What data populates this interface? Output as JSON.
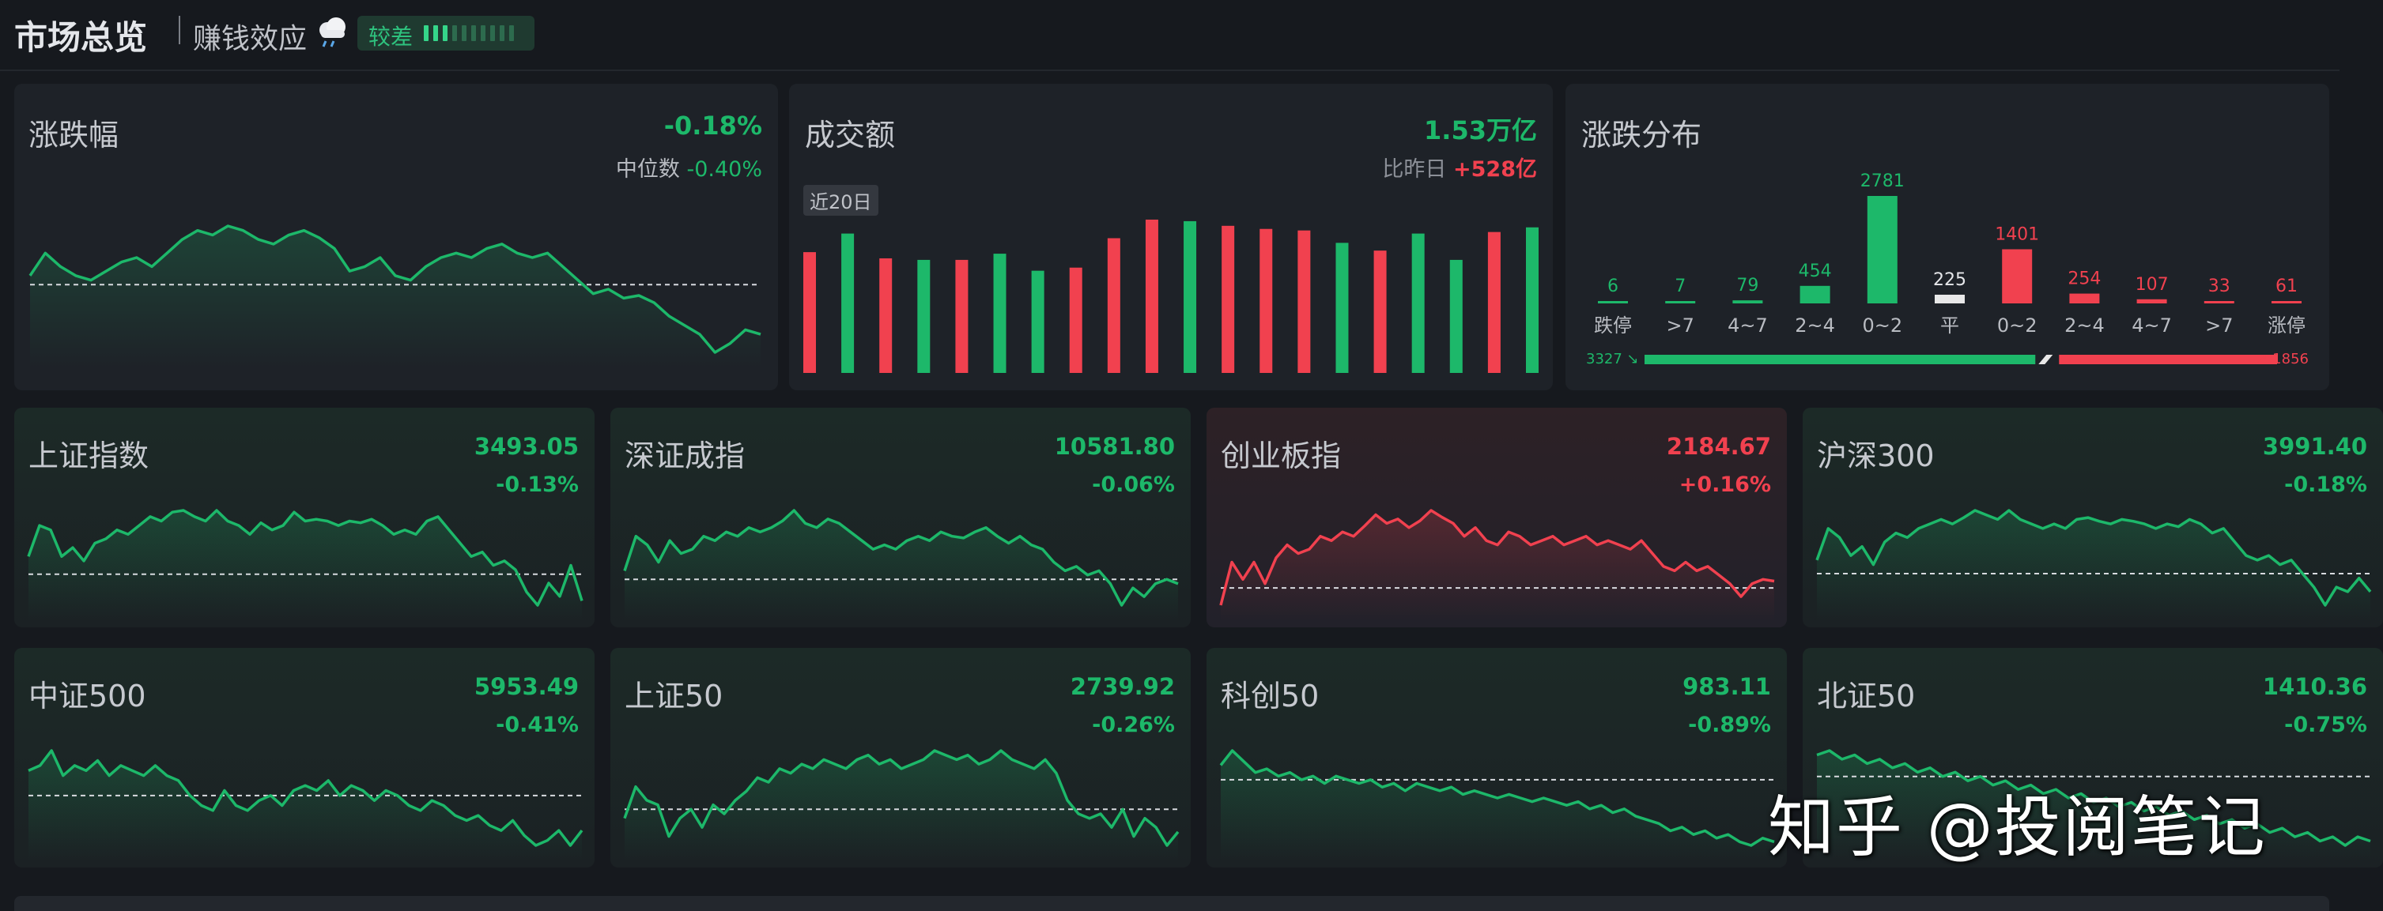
{
  "header": {
    "title": "市场总览",
    "subtitle": "赚钱效应",
    "weather_icon": "cloud-icon",
    "badge_label": "较差",
    "badge_level": 3,
    "badge_total": 10
  },
  "change_panel": {
    "title": "涨跌幅",
    "value": "-0.18%",
    "median_label": "中位数",
    "median_value": "-0.40%",
    "series": [
      0.1,
      0.35,
      0.2,
      0.1,
      0.05,
      0.15,
      0.25,
      0.3,
      0.2,
      0.35,
      0.5,
      0.6,
      0.55,
      0.65,
      0.6,
      0.5,
      0.45,
      0.55,
      0.6,
      0.52,
      0.4,
      0.15,
      0.2,
      0.3,
      0.1,
      0.05,
      0.2,
      0.3,
      0.35,
      0.3,
      0.4,
      0.45,
      0.35,
      0.3,
      0.35,
      0.2,
      0.05,
      -0.1,
      -0.05,
      -0.15,
      -0.12,
      -0.2,
      -0.35,
      -0.45,
      -0.55,
      -0.75,
      -0.65,
      -0.5,
      -0.55
    ]
  },
  "volume_panel": {
    "title": "成交额",
    "value": "1.53万亿",
    "compare_label": "比昨日",
    "compare_value": "+528亿",
    "range_tag": "近20日",
    "bars": [
      {
        "v": 0.78,
        "c": "red"
      },
      {
        "v": 0.9,
        "c": "green"
      },
      {
        "v": 0.74,
        "c": "red"
      },
      {
        "v": 0.73,
        "c": "green"
      },
      {
        "v": 0.73,
        "c": "red"
      },
      {
        "v": 0.77,
        "c": "green"
      },
      {
        "v": 0.66,
        "c": "green"
      },
      {
        "v": 0.68,
        "c": "red"
      },
      {
        "v": 0.87,
        "c": "red"
      },
      {
        "v": 0.99,
        "c": "red"
      },
      {
        "v": 0.98,
        "c": "green"
      },
      {
        "v": 0.95,
        "c": "red"
      },
      {
        "v": 0.93,
        "c": "red"
      },
      {
        "v": 0.92,
        "c": "red"
      },
      {
        "v": 0.84,
        "c": "green"
      },
      {
        "v": 0.79,
        "c": "red"
      },
      {
        "v": 0.9,
        "c": "green"
      },
      {
        "v": 0.73,
        "c": "green"
      },
      {
        "v": 0.91,
        "c": "red"
      },
      {
        "v": 0.94,
        "c": "green"
      }
    ]
  },
  "dist_panel": {
    "title": "涨跌分布",
    "buckets": [
      {
        "label": "跌停",
        "count": "6",
        "v": 6,
        "c": "green"
      },
      {
        "label": ">7",
        "count": "7",
        "v": 7,
        "c": "green"
      },
      {
        "label": "4~7",
        "count": "79",
        "v": 79,
        "c": "green"
      },
      {
        "label": "2~4",
        "count": "454",
        "v": 454,
        "c": "green"
      },
      {
        "label": "0~2",
        "count": "2781",
        "v": 2781,
        "c": "green"
      },
      {
        "label": "平",
        "count": "225",
        "v": 225,
        "c": "flat"
      },
      {
        "label": "0~2",
        "count": "1401",
        "v": 1401,
        "c": "red"
      },
      {
        "label": "2~4",
        "count": "254",
        "v": 254,
        "c": "red"
      },
      {
        "label": "4~7",
        "count": "107",
        "v": 107,
        "c": "red"
      },
      {
        "label": ">7",
        "count": "33",
        "v": 33,
        "c": "red"
      },
      {
        "label": "涨停",
        "count": "61",
        "v": 61,
        "c": "red"
      }
    ],
    "down_total": "3327",
    "up_total": "1856",
    "down_value": 3327,
    "up_value": 1856
  },
  "indices": [
    {
      "name": "上证指数",
      "value": "3493.05",
      "change": "-0.13%",
      "dir": "down",
      "series": [
        0.2,
        0.55,
        0.5,
        0.2,
        0.3,
        0.15,
        0.35,
        0.4,
        0.5,
        0.45,
        0.55,
        0.65,
        0.6,
        0.7,
        0.72,
        0.65,
        0.6,
        0.72,
        0.6,
        0.55,
        0.45,
        0.58,
        0.5,
        0.55,
        0.7,
        0.6,
        0.62,
        0.6,
        0.55,
        0.6,
        0.58,
        0.62,
        0.55,
        0.45,
        0.5,
        0.45,
        0.6,
        0.65,
        0.5,
        0.35,
        0.2,
        0.25,
        0.1,
        0.15,
        0.05,
        -0.2,
        -0.35,
        -0.1,
        -0.25,
        0.1,
        -0.3
      ]
    },
    {
      "name": "深证成指",
      "value": "10581.80",
      "change": "-0.06%",
      "dir": "down",
      "series": [
        0.1,
        0.5,
        0.4,
        0.2,
        0.45,
        0.3,
        0.35,
        0.5,
        0.45,
        0.55,
        0.5,
        0.6,
        0.55,
        0.6,
        0.68,
        0.8,
        0.65,
        0.6,
        0.7,
        0.65,
        0.55,
        0.45,
        0.35,
        0.4,
        0.35,
        0.45,
        0.5,
        0.45,
        0.55,
        0.5,
        0.48,
        0.55,
        0.6,
        0.5,
        0.42,
        0.5,
        0.4,
        0.35,
        0.2,
        0.1,
        0.15,
        0.05,
        0.1,
        -0.05,
        -0.3,
        -0.1,
        -0.2,
        -0.05,
        0.0,
        -0.05
      ]
    },
    {
      "name": "创业板指",
      "value": "2184.67",
      "change": "+0.16%",
      "dir": "up",
      "series": [
        -0.2,
        0.3,
        0.1,
        0.3,
        0.05,
        0.35,
        0.5,
        0.4,
        0.45,
        0.6,
        0.55,
        0.65,
        0.6,
        0.72,
        0.85,
        0.75,
        0.8,
        0.7,
        0.78,
        0.9,
        0.82,
        0.75,
        0.6,
        0.7,
        0.55,
        0.5,
        0.65,
        0.6,
        0.5,
        0.55,
        0.6,
        0.5,
        0.55,
        0.6,
        0.5,
        0.55,
        0.5,
        0.45,
        0.55,
        0.4,
        0.25,
        0.2,
        0.3,
        0.2,
        0.25,
        0.15,
        0.05,
        -0.1,
        0.05,
        0.1,
        0.08
      ]
    },
    {
      "name": "沪深300",
      "value": "3991.40",
      "change": "-0.18%",
      "dir": "down",
      "series": [
        0.15,
        0.5,
        0.4,
        0.2,
        0.3,
        0.1,
        0.35,
        0.45,
        0.4,
        0.5,
        0.55,
        0.6,
        0.55,
        0.62,
        0.7,
        0.65,
        0.6,
        0.7,
        0.6,
        0.55,
        0.5,
        0.55,
        0.5,
        0.6,
        0.62,
        0.58,
        0.55,
        0.6,
        0.58,
        0.55,
        0.5,
        0.55,
        0.52,
        0.6,
        0.55,
        0.45,
        0.5,
        0.35,
        0.2,
        0.15,
        0.2,
        0.1,
        0.15,
        0.0,
        -0.15,
        -0.35,
        -0.15,
        -0.2,
        -0.05,
        -0.2
      ]
    },
    {
      "name": "中证500",
      "value": "5953.49",
      "change": "-0.41%",
      "dir": "down",
      "series": [
        0.25,
        0.3,
        0.45,
        0.2,
        0.3,
        0.25,
        0.35,
        0.2,
        0.3,
        0.25,
        0.2,
        0.3,
        0.2,
        0.15,
        0.0,
        -0.1,
        -0.15,
        0.05,
        -0.1,
        -0.15,
        -0.05,
        0.0,
        -0.1,
        0.05,
        0.1,
        0.05,
        0.15,
        0.0,
        0.1,
        0.05,
        -0.05,
        0.05,
        0.0,
        -0.1,
        -0.15,
        -0.05,
        -0.1,
        -0.2,
        -0.25,
        -0.2,
        -0.3,
        -0.35,
        -0.25,
        -0.4,
        -0.5,
        -0.45,
        -0.35,
        -0.5,
        -0.35
      ]
    },
    {
      "name": "上证50",
      "value": "2739.92",
      "change": "-0.26%",
      "dir": "down",
      "series": [
        -0.1,
        0.25,
        0.1,
        0.05,
        -0.3,
        -0.1,
        0.0,
        -0.2,
        0.05,
        -0.05,
        0.1,
        0.2,
        0.35,
        0.3,
        0.45,
        0.4,
        0.5,
        0.45,
        0.55,
        0.5,
        0.45,
        0.55,
        0.6,
        0.5,
        0.55,
        0.45,
        0.5,
        0.55,
        0.65,
        0.6,
        0.55,
        0.6,
        0.5,
        0.55,
        0.65,
        0.55,
        0.5,
        0.45,
        0.55,
        0.4,
        0.1,
        -0.05,
        -0.1,
        -0.05,
        -0.2,
        0.0,
        -0.3,
        -0.1,
        -0.2,
        -0.4,
        -0.25
      ]
    },
    {
      "name": "科创50",
      "value": "983.11",
      "change": "-0.89%",
      "dir": "down",
      "series": [
        0.2,
        0.4,
        0.25,
        0.1,
        0.15,
        0.05,
        0.1,
        0.0,
        0.05,
        -0.05,
        0.05,
        0.0,
        -0.05,
        0.0,
        -0.1,
        -0.05,
        -0.15,
        -0.05,
        -0.1,
        -0.15,
        -0.1,
        -0.2,
        -0.15,
        -0.2,
        -0.25,
        -0.2,
        -0.25,
        -0.3,
        -0.25,
        -0.3,
        -0.35,
        -0.3,
        -0.4,
        -0.35,
        -0.45,
        -0.4,
        -0.5,
        -0.55,
        -0.6,
        -0.7,
        -0.65,
        -0.75,
        -0.7,
        -0.8,
        -0.75,
        -0.85,
        -0.9,
        -0.8,
        -0.85
      ]
    },
    {
      "name": "北证50",
      "value": "1410.36",
      "change": "-0.75%",
      "dir": "down",
      "series": [
        0.25,
        0.3,
        0.2,
        0.25,
        0.15,
        0.2,
        0.1,
        0.15,
        0.05,
        0.1,
        0.0,
        0.05,
        -0.05,
        0.0,
        -0.1,
        -0.05,
        -0.15,
        -0.1,
        -0.2,
        -0.15,
        -0.25,
        -0.2,
        -0.3,
        -0.25,
        -0.35,
        -0.3,
        -0.4,
        -0.35,
        -0.45,
        -0.4,
        -0.5,
        -0.45,
        -0.55,
        -0.5,
        -0.6,
        -0.55,
        -0.65,
        -0.6,
        -0.7,
        -0.65,
        -0.75,
        -0.7,
        -0.8,
        -0.7,
        -0.75
      ]
    }
  ],
  "watermark": "知乎 @投阅笔记",
  "colors": {
    "up": "#f1414f",
    "down": "#1db86a",
    "flat": "#e8e8e8"
  }
}
